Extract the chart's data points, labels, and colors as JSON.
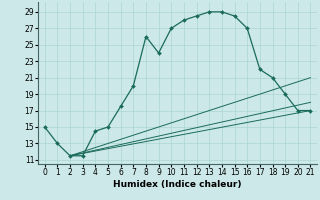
{
  "xlabel": "Humidex (Indice chaleur)",
  "bg_color": "#cce8e8",
  "line_color": "#1a6b5a",
  "xlim": [
    -0.5,
    21.5
  ],
  "ylim": [
    10.5,
    30.2
  ],
  "xticks": [
    0,
    1,
    2,
    3,
    4,
    5,
    6,
    7,
    8,
    9,
    10,
    11,
    12,
    13,
    14,
    15,
    16,
    17,
    18,
    19,
    20,
    21
  ],
  "yticks": [
    11,
    13,
    15,
    17,
    19,
    21,
    23,
    25,
    27,
    29
  ],
  "main_x": [
    0,
    1,
    2,
    3,
    4,
    5,
    6,
    7,
    8,
    9,
    10,
    11,
    12,
    13,
    14,
    15,
    16,
    17,
    18,
    19,
    20,
    21
  ],
  "main_y": [
    15,
    13,
    11.5,
    11.5,
    14.5,
    15,
    17.5,
    20,
    26,
    24,
    27,
    28,
    28.5,
    29,
    29,
    28.5,
    27,
    22,
    21,
    19,
    17,
    17
  ],
  "line2_x": [
    2,
    21
  ],
  "line2_y": [
    11.5,
    17
  ],
  "line3_x": [
    2,
    21
  ],
  "line3_y": [
    11.5,
    18
  ],
  "line4_x": [
    2,
    21
  ],
  "line4_y": [
    11.5,
    21
  ],
  "grid_color": "#aad4d4",
  "tick_fontsize": 5.5,
  "xlabel_fontsize": 6.5
}
